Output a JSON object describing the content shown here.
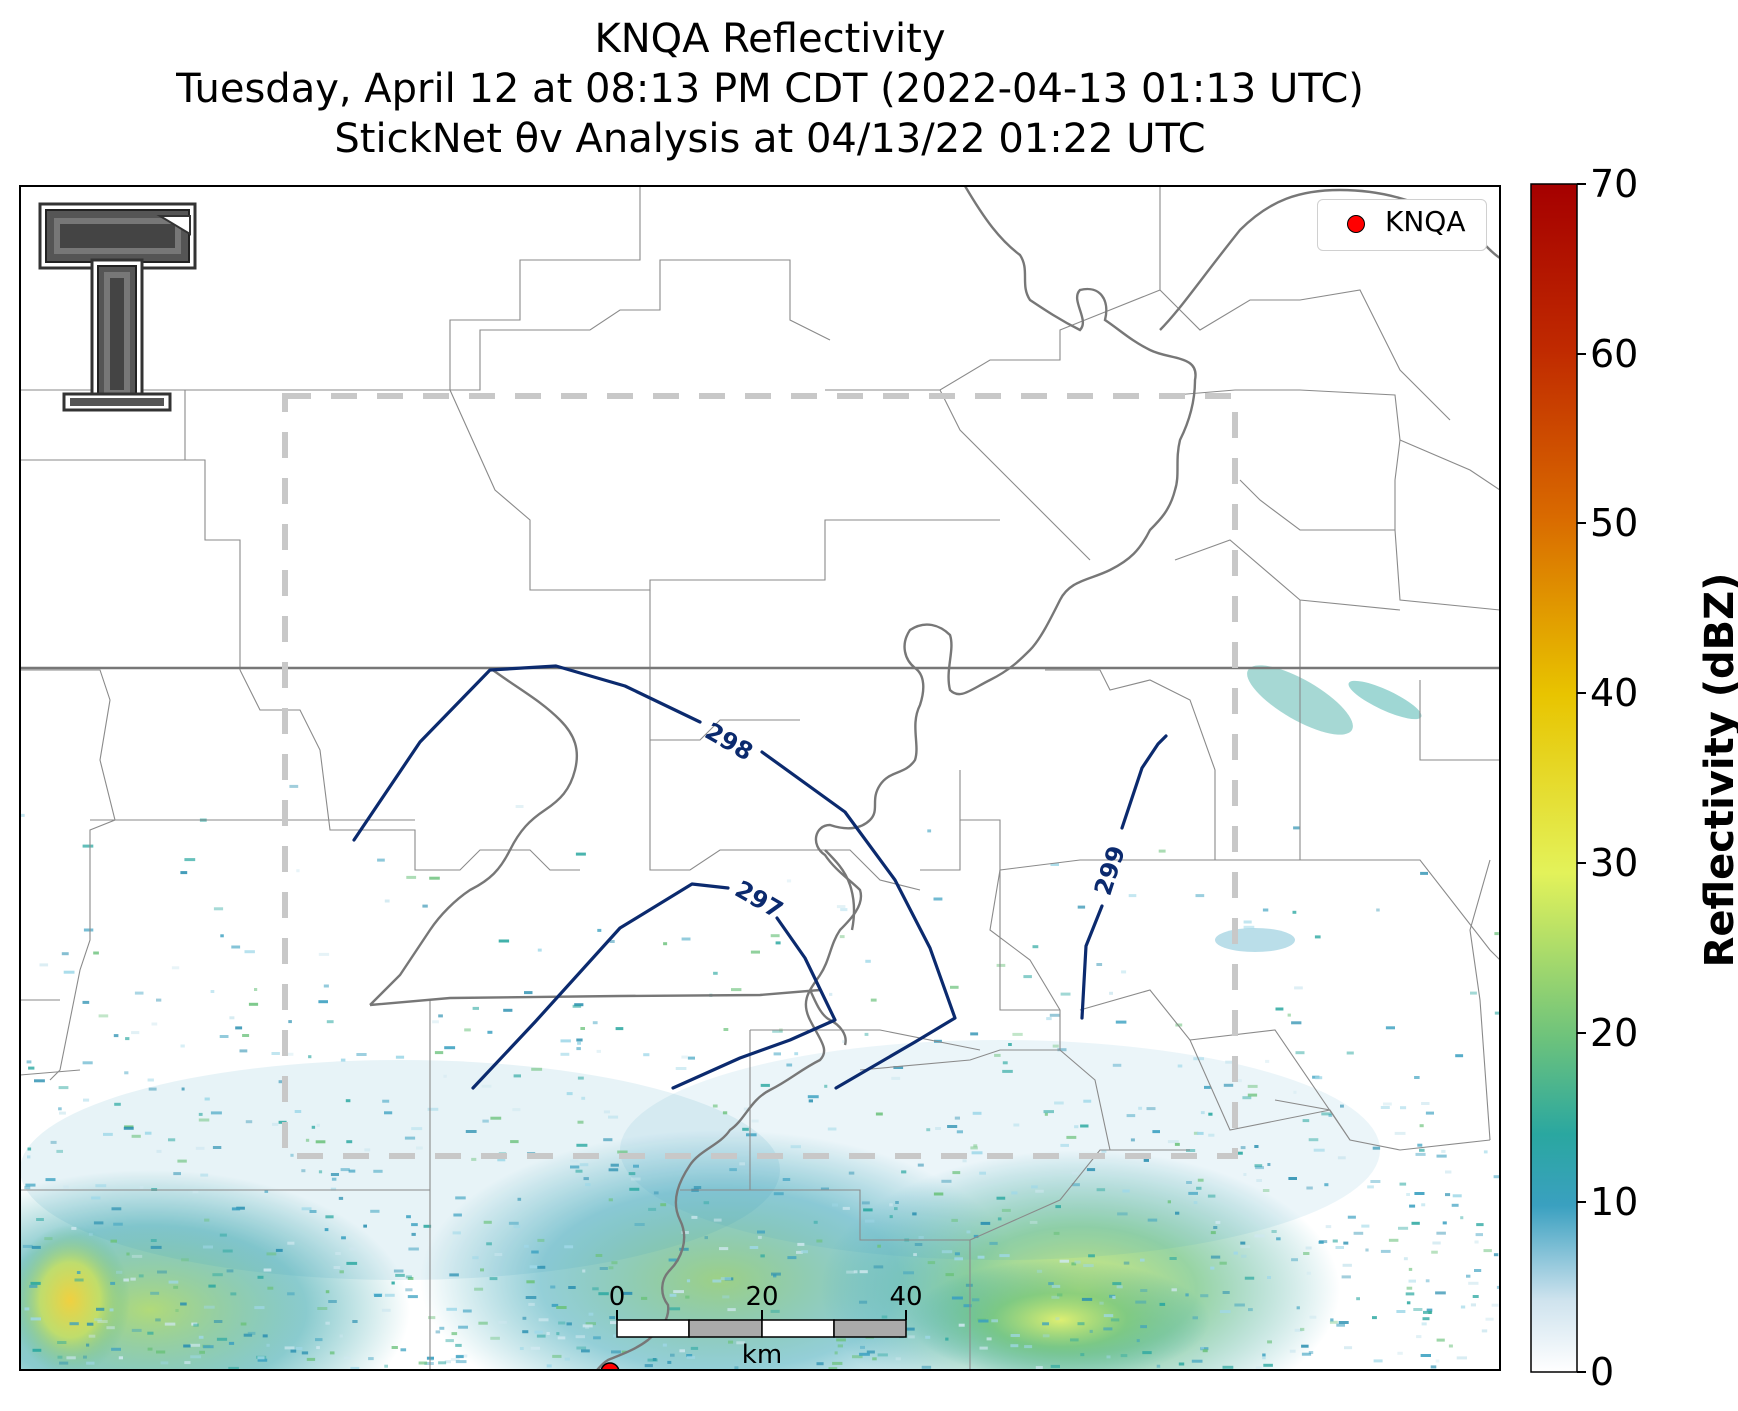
{
  "title": {
    "line1": "KNQA Reflectivity",
    "line2": "Tuesday, April 12 at 08:13 PM CDT (2022-04-13 01:13 UTC)",
    "line3": "StickNet θv Analysis at 04/13/22 01:22 UTC"
  },
  "legend": {
    "label": "KNQA",
    "marker_color": "#ff0000"
  },
  "colorbar": {
    "label": "Reflectivity (dBZ)",
    "ticks": [
      "0",
      "10",
      "20",
      "30",
      "40",
      "50",
      "60",
      "70"
    ],
    "range": [
      0,
      70
    ],
    "stops": [
      "#ffffff",
      "#3aa0c0",
      "#2aa7a0",
      "#6cc27c",
      "#e3f25a",
      "#e8c400",
      "#d96a00",
      "#a50000"
    ]
  },
  "contours": [
    {
      "label": "298",
      "color": "#0b2a6e"
    },
    {
      "label": "297",
      "color": "#0b2a6e"
    },
    {
      "label": "299",
      "color": "#0b2a6e"
    }
  ],
  "scalebar": {
    "ticks": [
      "0",
      "20",
      "40"
    ],
    "unit": "km"
  },
  "logo": {
    "name": "Texas Tech Double T"
  }
}
